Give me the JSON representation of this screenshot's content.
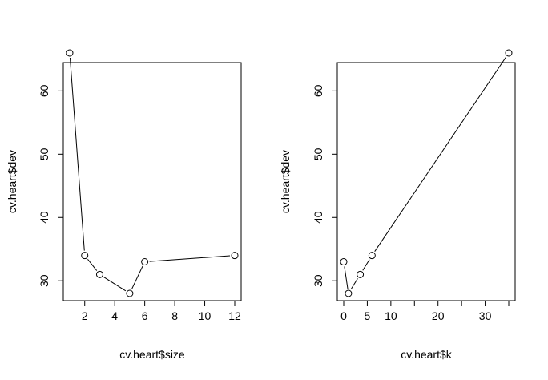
{
  "chart_data": [
    {
      "type": "line",
      "marker": "open-circle",
      "xlabel": "cv.heart$size",
      "ylabel": "cv.heart$dev",
      "x": [
        1,
        2,
        3,
        5,
        6,
        12
      ],
      "y": [
        66,
        34,
        31,
        28,
        33,
        34
      ],
      "xlim": [
        1,
        12
      ],
      "ylim": [
        28,
        66
      ],
      "xticks": [
        2,
        4,
        6,
        8,
        10,
        12
      ],
      "xtick_labels": [
        "2",
        "4",
        "6",
        "8",
        "10",
        "12"
      ],
      "yticks": [
        30,
        40,
        50,
        60
      ],
      "ytick_labels": [
        "30",
        "40",
        "50",
        "60"
      ],
      "grid": false
    },
    {
      "type": "line",
      "marker": "open-circle",
      "xlabel": "cv.heart$k",
      "ylabel": "cv.heart$dev",
      "x": [
        0,
        1,
        3.5,
        6,
        35
      ],
      "y": [
        33,
        28,
        31,
        34,
        66
      ],
      "xlim": [
        0,
        35
      ],
      "ylim": [
        28,
        66
      ],
      "xticks": [
        0,
        5,
        10,
        15,
        20,
        25,
        30,
        35
      ],
      "xtick_labels": [
        "0",
        "5",
        "10",
        "",
        "20",
        "",
        "30",
        ""
      ],
      "yticks": [
        30,
        40,
        50,
        60
      ],
      "ytick_labels": [
        "30",
        "40",
        "50",
        "60"
      ],
      "grid": false
    }
  ]
}
